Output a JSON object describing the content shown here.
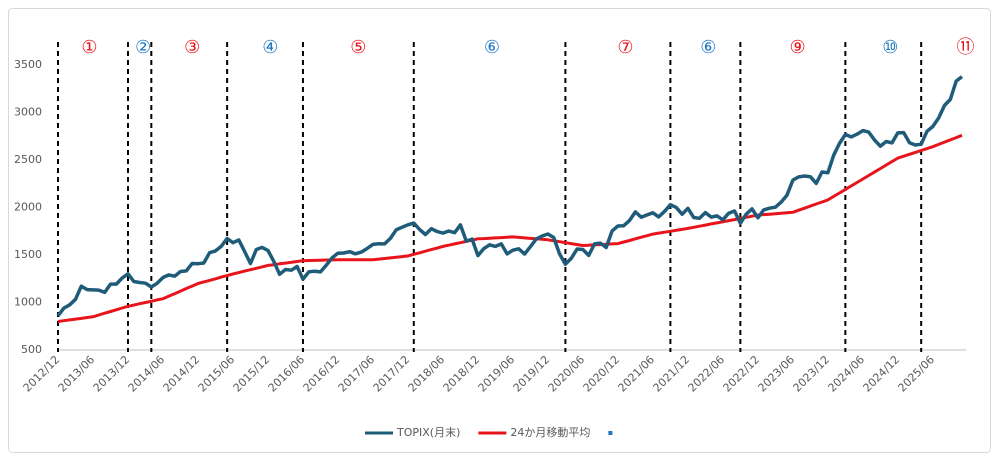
{
  "chart_data": {
    "type": "line",
    "categories": [
      "2012/12",
      null,
      null,
      null,
      null,
      null,
      "2013/06",
      null,
      null,
      null,
      null,
      null,
      "2013/12",
      null,
      null,
      null,
      null,
      null,
      "2014/06",
      null,
      null,
      null,
      null,
      null,
      "2014/12",
      null,
      null,
      null,
      null,
      null,
      "2015/06",
      null,
      null,
      null,
      null,
      null,
      "2015/12",
      null,
      null,
      null,
      null,
      null,
      "2016/06",
      null,
      null,
      null,
      null,
      null,
      "2016/12",
      null,
      null,
      null,
      null,
      null,
      "2017/06",
      null,
      null,
      null,
      null,
      null,
      "2017/12",
      null,
      null,
      null,
      null,
      null,
      "2018/06",
      null,
      null,
      null,
      null,
      null,
      "2018/12",
      null,
      null,
      null,
      null,
      null,
      "2019/06",
      null,
      null,
      null,
      null,
      null,
      "2019/12",
      null,
      null,
      null,
      null,
      null,
      "2020/06",
      null,
      null,
      null,
      null,
      null,
      "2020/12",
      null,
      null,
      null,
      null,
      null,
      "2021/06",
      null,
      null,
      null,
      null,
      null,
      "2021/12",
      null,
      null,
      null,
      null,
      null,
      "2022/06",
      null,
      null,
      null,
      null,
      null,
      "2022/12",
      null,
      null,
      null,
      null,
      null,
      "2023/06",
      null,
      null,
      null,
      null,
      null,
      "2023/12",
      null,
      null,
      null,
      null,
      null,
      "2024/06",
      null,
      null,
      null,
      null,
      null,
      "2024/12",
      null,
      null,
      null,
      null,
      null,
      "2025/06",
      null,
      null,
      null,
      null,
      null
    ],
    "series": [
      {
        "name": "TOPIX(月末)",
        "color": "#1f5c7a",
        "values": [
          860,
          940,
          976,
          1034,
          1172,
          1136,
          1133,
          1131,
          1106,
          1194,
          1194,
          1258,
          1302,
          1221,
          1211,
          1203,
          1163,
          1202,
          1263,
          1290,
          1277,
          1326,
          1333,
          1411,
          1408,
          1416,
          1524,
          1543,
          1592,
          1674,
          1630,
          1659,
          1537,
          1411,
          1558,
          1580,
          1547,
          1433,
          1297,
          1347,
          1340,
          1379,
          1245,
          1322,
          1329,
          1322,
          1393,
          1469,
          1519,
          1521,
          1535,
          1513,
          1531,
          1568,
          1612,
          1618,
          1617,
          1675,
          1766,
          1792,
          1818,
          1836,
          1768,
          1716,
          1777,
          1747,
          1730,
          1753,
          1735,
          1817,
          1646,
          1667,
          1494,
          1567,
          1607,
          1591,
          1617,
          1512,
          1551,
          1565,
          1511,
          1587,
          1667,
          1700,
          1721,
          1684,
          1511,
          1403,
          1464,
          1563,
          1558,
          1496,
          1618,
          1625,
          1579,
          1754,
          1805,
          1808,
          1864,
          1954,
          1898,
          1922,
          1944,
          1901,
          1960,
          2030,
          2001,
          1928,
          1992,
          1895,
          1886,
          1946,
          1899,
          1912,
          1870,
          1940,
          1963,
          1835,
          1929,
          1985,
          1892,
          1975,
          1993,
          2003,
          2057,
          2131,
          2288,
          2322,
          2332,
          2324,
          2254,
          2374,
          2366,
          2551,
          2675,
          2768,
          2743,
          2772,
          2809,
          2794,
          2712,
          2645,
          2695,
          2680,
          2785,
          2788,
          2682,
          2658,
          2667,
          2802,
          2853,
          2943,
          3075,
          3137,
          3331,
          3378
        ]
      },
      {
        "name": "24か月移動平均",
        "color": "#e8141b",
        "values": [
          800,
          808,
          817,
          825,
          833,
          842,
          850,
          868,
          887,
          905,
          923,
          942,
          960,
          973,
          987,
          1000,
          1013,
          1027,
          1040,
          1067,
          1093,
          1120,
          1147,
          1173,
          1200,
          1217,
          1233,
          1250,
          1267,
          1283,
          1300,
          1315,
          1330,
          1345,
          1360,
          1375,
          1390,
          1398,
          1407,
          1415,
          1423,
          1432,
          1440,
          1442,
          1443,
          1445,
          1447,
          1448,
          1450,
          1450,
          1450,
          1450,
          1450,
          1450,
          1450,
          1457,
          1463,
          1470,
          1477,
          1483,
          1490,
          1507,
          1523,
          1540,
          1557,
          1573,
          1590,
          1603,
          1617,
          1630,
          1643,
          1657,
          1670,
          1673,
          1677,
          1680,
          1683,
          1687,
          1690,
          1685,
          1680,
          1675,
          1670,
          1665,
          1660,
          1650,
          1640,
          1630,
          1620,
          1610,
          1600,
          1603,
          1607,
          1610,
          1613,
          1617,
          1620,
          1637,
          1653,
          1670,
          1687,
          1703,
          1720,
          1730,
          1740,
          1750,
          1760,
          1770,
          1780,
          1792,
          1803,
          1815,
          1827,
          1838,
          1850,
          1862,
          1873,
          1885,
          1897,
          1908,
          1920,
          1925,
          1930,
          1935,
          1940,
          1945,
          1950,
          1972,
          1993,
          2015,
          2037,
          2058,
          2080,
          2117,
          2153,
          2190,
          2227,
          2263,
          2300,
          2337,
          2373,
          2410,
          2447,
          2483,
          2520,
          2540,
          2560,
          2580,
          2600,
          2620,
          2640,
          2664,
          2688,
          2712,
          2736,
          2760
        ]
      }
    ],
    "ylim": [
      500,
      3800
    ],
    "yticks": [
      500,
      1000,
      1500,
      2000,
      2500,
      3000,
      3500
    ],
    "grid": false,
    "legend": "bottom",
    "dividers": [
      0,
      12,
      16,
      29,
      42,
      61,
      87,
      105,
      117,
      135,
      148
    ],
    "annotations": [
      {
        "text": "①",
        "color": "#e8141b",
        "x": 5.4
      },
      {
        "text": "②",
        "color": "#1f77c4",
        "x": 14.6
      },
      {
        "text": "③",
        "color": "#e8141b",
        "x": 23
      },
      {
        "text": "④",
        "color": "#1f77c4",
        "x": 36.4
      },
      {
        "text": "⑤",
        "color": "#e8141b",
        "x": 51.5
      },
      {
        "text": "⑥",
        "color": "#1f77c4",
        "x": 74.4
      },
      {
        "text": "⑦",
        "color": "#e8141b",
        "x": 97.3
      },
      {
        "text": "⑥",
        "color": "#1f77c4",
        "x": 111.5
      },
      {
        "text": "⑨",
        "color": "#e8141b",
        "x": 126.8
      },
      {
        "text": "⑩",
        "color": "#1f77c4",
        "x": 142.7
      },
      {
        "text": "⑪",
        "color": "#e8141b",
        "x": 155.6
      }
    ]
  }
}
